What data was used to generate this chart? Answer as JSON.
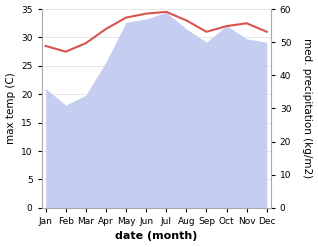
{
  "months": [
    "Jan",
    "Feb",
    "Mar",
    "Apr",
    "May",
    "Jun",
    "Jul",
    "Aug",
    "Sep",
    "Oct",
    "Nov",
    "Dec"
  ],
  "month_x": [
    0,
    1,
    2,
    3,
    4,
    5,
    6,
    7,
    8,
    9,
    10,
    11
  ],
  "temperature": [
    28.5,
    27.5,
    29.0,
    31.5,
    33.5,
    34.2,
    34.5,
    33.0,
    31.0,
    32.0,
    32.5,
    31.0
  ],
  "rainfall_right": [
    36,
    31,
    34,
    44,
    56,
    57,
    59,
    54,
    50,
    55,
    51,
    50
  ],
  "temp_color": "#d9534f",
  "rain_fill_color": "#c5cdf0",
  "rain_line_color": "#9aa5dc",
  "left_ylim": [
    0,
    35
  ],
  "right_ylim": [
    0,
    60
  ],
  "left_yticks": [
    0,
    5,
    10,
    15,
    20,
    25,
    30,
    35
  ],
  "right_yticks": [
    0,
    10,
    20,
    30,
    40,
    50,
    60
  ],
  "xlabel": "date (month)",
  "ylabel_left": "max temp (C)",
  "ylabel_right": "med. precipitation (kg/m2)",
  "background_color": "#ffffff",
  "label_fontsize": 7.5,
  "tick_fontsize": 6.5,
  "xlabel_fontsize": 8
}
